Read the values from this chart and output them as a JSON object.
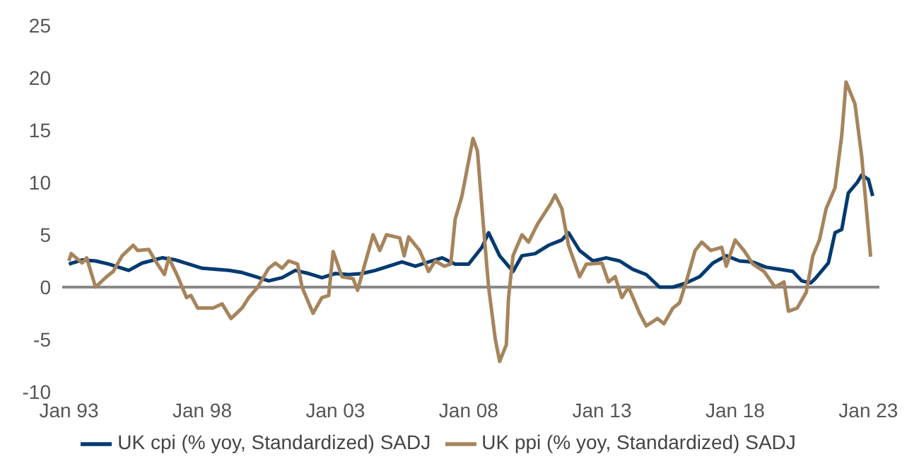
{
  "chart_data": {
    "type": "line",
    "xlim": [
      "1992-10",
      "2023-06"
    ],
    "xticks": [
      {
        "value": "1993-01",
        "label": "Jan 93"
      },
      {
        "value": "1998-01",
        "label": "Jan 98"
      },
      {
        "value": "2003-01",
        "label": "Jan 03"
      },
      {
        "value": "2008-01",
        "label": "Jan 08"
      },
      {
        "value": "2013-01",
        "label": "Jan 13"
      },
      {
        "value": "2018-01",
        "label": "Jan 18"
      },
      {
        "value": "2023-01",
        "label": "Jan 23"
      }
    ],
    "ylim": [
      -10,
      25
    ],
    "yticks": [
      -10,
      -5,
      0,
      5,
      10,
      15,
      20,
      25
    ],
    "ref_lines": [
      {
        "axis": "y",
        "value": 0,
        "color": "#888888"
      }
    ],
    "grid": false,
    "legend": "bottom",
    "line_style": "solid",
    "marker": "none",
    "series": [
      {
        "name": "UK cpi (% yoy, Standardized) SADJ",
        "color": "#003a70",
        "x": [
          "1993-01",
          "1993-07",
          "1994-01",
          "1994-07",
          "1995-04",
          "1995-10",
          "1996-07",
          "1997-01",
          "1997-07",
          "1998-01",
          "1998-07",
          "1999-01",
          "1999-07",
          "2000-01",
          "2000-07",
          "2001-01",
          "2001-07",
          "2002-01",
          "2002-07",
          "2003-01",
          "2003-07",
          "2004-01",
          "2004-07",
          "2005-01",
          "2005-07",
          "2006-01",
          "2006-07",
          "2007-01",
          "2007-07",
          "2008-01",
          "2008-07",
          "2008-10",
          "2009-03",
          "2009-09",
          "2010-01",
          "2010-07",
          "2011-01",
          "2011-07",
          "2011-10",
          "2012-03",
          "2012-09",
          "2013-03",
          "2013-09",
          "2014-03",
          "2014-09",
          "2015-03",
          "2015-09",
          "2016-03",
          "2016-09",
          "2017-03",
          "2017-09",
          "2018-03",
          "2018-09",
          "2019-03",
          "2019-09",
          "2020-03",
          "2020-07",
          "2020-11",
          "2021-01",
          "2021-07",
          "2021-10",
          "2022-01",
          "2022-04",
          "2022-08",
          "2022-10",
          "2023-01",
          "2023-03"
        ],
        "values": [
          2.2,
          2.6,
          2.5,
          2.2,
          1.6,
          2.3,
          2.8,
          2.6,
          2.2,
          1.8,
          1.7,
          1.6,
          1.4,
          1.0,
          0.6,
          0.9,
          1.6,
          1.3,
          0.9,
          1.3,
          1.2,
          1.3,
          1.6,
          2.0,
          2.4,
          2.0,
          2.4,
          2.8,
          2.2,
          2.2,
          3.8,
          5.2,
          3.0,
          1.5,
          3.0,
          3.2,
          4.0,
          4.5,
          5.2,
          3.5,
          2.5,
          2.8,
          2.5,
          1.7,
          1.2,
          0.0,
          0.0,
          0.4,
          1.0,
          2.3,
          3.0,
          2.5,
          2.4,
          1.9,
          1.7,
          1.5,
          0.6,
          0.4,
          0.8,
          2.3,
          5.2,
          5.5,
          9.0,
          10.0,
          10.7,
          10.3,
          8.7
        ]
      },
      {
        "name": "UK ppi (% yoy, Standardized) SADJ",
        "color": "#a6845c",
        "x": [
          "1993-01",
          "1993-02",
          "1993-07",
          "1993-09",
          "1994-01",
          "1994-06",
          "1994-09",
          "1995-01",
          "1995-06",
          "1995-08",
          "1996-01",
          "1996-04",
          "1996-08",
          "1996-10",
          "1997-02",
          "1997-06",
          "1997-08",
          "1997-11",
          "1998-06",
          "1998-10",
          "1999-02",
          "1999-07",
          "1999-10",
          "2000-02",
          "2000-07",
          "2000-10",
          "2001-01",
          "2001-04",
          "2001-08",
          "2001-10",
          "2002-03",
          "2002-07",
          "2002-10",
          "2002-12",
          "2003-04",
          "2003-09",
          "2003-11",
          "2004-02",
          "2004-06",
          "2004-09",
          "2004-12",
          "2005-06",
          "2005-08",
          "2005-10",
          "2006-03",
          "2006-07",
          "2006-10",
          "2007-02",
          "2007-05",
          "2007-07",
          "2007-10",
          "2008-03",
          "2008-05",
          "2008-08",
          "2008-10",
          "2009-01",
          "2009-03",
          "2009-06",
          "2009-07",
          "2009-09",
          "2010-01",
          "2010-04",
          "2010-08",
          "2011-02",
          "2011-04",
          "2011-07",
          "2011-10",
          "2012-03",
          "2012-06",
          "2013-01",
          "2013-04",
          "2013-07",
          "2013-10",
          "2014-01",
          "2014-06",
          "2014-09",
          "2015-02",
          "2015-05",
          "2015-09",
          "2015-12",
          "2016-03",
          "2016-07",
          "2016-10",
          "2017-02",
          "2017-07",
          "2017-09",
          "2018-01",
          "2018-05",
          "2018-09",
          "2019-02",
          "2019-07",
          "2019-11",
          "2020-01",
          "2020-05",
          "2020-09",
          "2020-12",
          "2021-03",
          "2021-06",
          "2021-10",
          "2022-01",
          "2022-03",
          "2022-07",
          "2022-10",
          "2023-02"
        ],
        "values": [
          2.5,
          3.2,
          2.3,
          2.8,
          0.0,
          1.0,
          1.5,
          3.0,
          4.0,
          3.5,
          3.6,
          2.5,
          1.2,
          2.8,
          1.0,
          -1.0,
          -0.8,
          -2.0,
          -2.0,
          -1.6,
          -3.0,
          -2.0,
          -1.0,
          0.0,
          1.8,
          2.3,
          1.8,
          2.5,
          2.2,
          0.0,
          -2.5,
          -1.0,
          -0.8,
          3.4,
          1.0,
          0.8,
          -0.3,
          2.0,
          5.0,
          3.5,
          5.0,
          4.7,
          3.0,
          4.8,
          3.5,
          1.5,
          2.5,
          2.0,
          2.2,
          6.5,
          8.7,
          14.2,
          13.0,
          5.0,
          0.0,
          -5.0,
          -7.1,
          -5.5,
          -1.0,
          3.0,
          5.0,
          4.3,
          6.0,
          8.0,
          8.8,
          7.5,
          4.0,
          1.0,
          2.2,
          2.3,
          0.5,
          1.0,
          -1.0,
          0.0,
          -2.5,
          -3.7,
          -3.0,
          -3.5,
          -2.0,
          -1.5,
          0.5,
          3.5,
          4.3,
          3.5,
          3.8,
          2.0,
          4.5,
          3.5,
          2.2,
          1.5,
          0.0,
          0.5,
          -2.3,
          -2.0,
          -0.5,
          3.0,
          4.5,
          7.5,
          9.5,
          14.5,
          19.6,
          17.5,
          12.5,
          2.9
        ]
      }
    ]
  }
}
